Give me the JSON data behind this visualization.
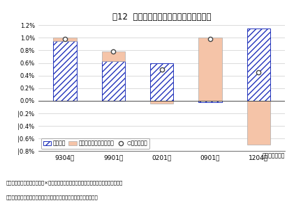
{
  "title": "図12  労働時間の減少が労働投入量を抑制",
  "categories": [
    "9304～",
    "9901～",
    "0201～",
    "0901～",
    "1204～"
  ],
  "employment": [
    0.95,
    0.63,
    0.6,
    -0.02,
    1.15
  ],
  "hours": [
    0.05,
    0.15,
    -0.05,
    1.0,
    -0.7
  ],
  "total": [
    0.98,
    0.78,
    0.5,
    0.98,
    0.45
  ],
  "ylim": [
    -0.8,
    1.2
  ],
  "yticks": [
    -0.8,
    -0.6,
    -0.4,
    -0.2,
    0.0,
    0.2,
    0.4,
    0.6,
    0.8,
    1.0,
    1.2
  ],
  "ytick_labels": [
    "│0.8%",
    "│0.6%",
    "│0.4%",
    "│0.2%",
    "0.0%",
    "0.2%",
    "0.4%",
    "0.6%",
    "0.8%",
    "1.0%",
    "1.2%"
  ],
  "employment_color": "#2233bb",
  "hours_color": "#f5c4a8",
  "hatch": "////",
  "bar_width": 0.48,
  "xlabel": "（年・四半期）",
  "legend_emp": "雇用者数",
  "legend_hrs": "労働時間（一人当たり）",
  "legend_tot": "○労働投入量",
  "footnote1": "（注）労働投入量＝雇用者数×労働時間（一人当たり）。景気回復局面の年平均伸び率",
  "footnote2": "（資料）総務省統計局「労働力調査」、厉生労働省「毎月勤労統計」",
  "bg_color": "#ffffff",
  "grid_color": "#cccccc"
}
